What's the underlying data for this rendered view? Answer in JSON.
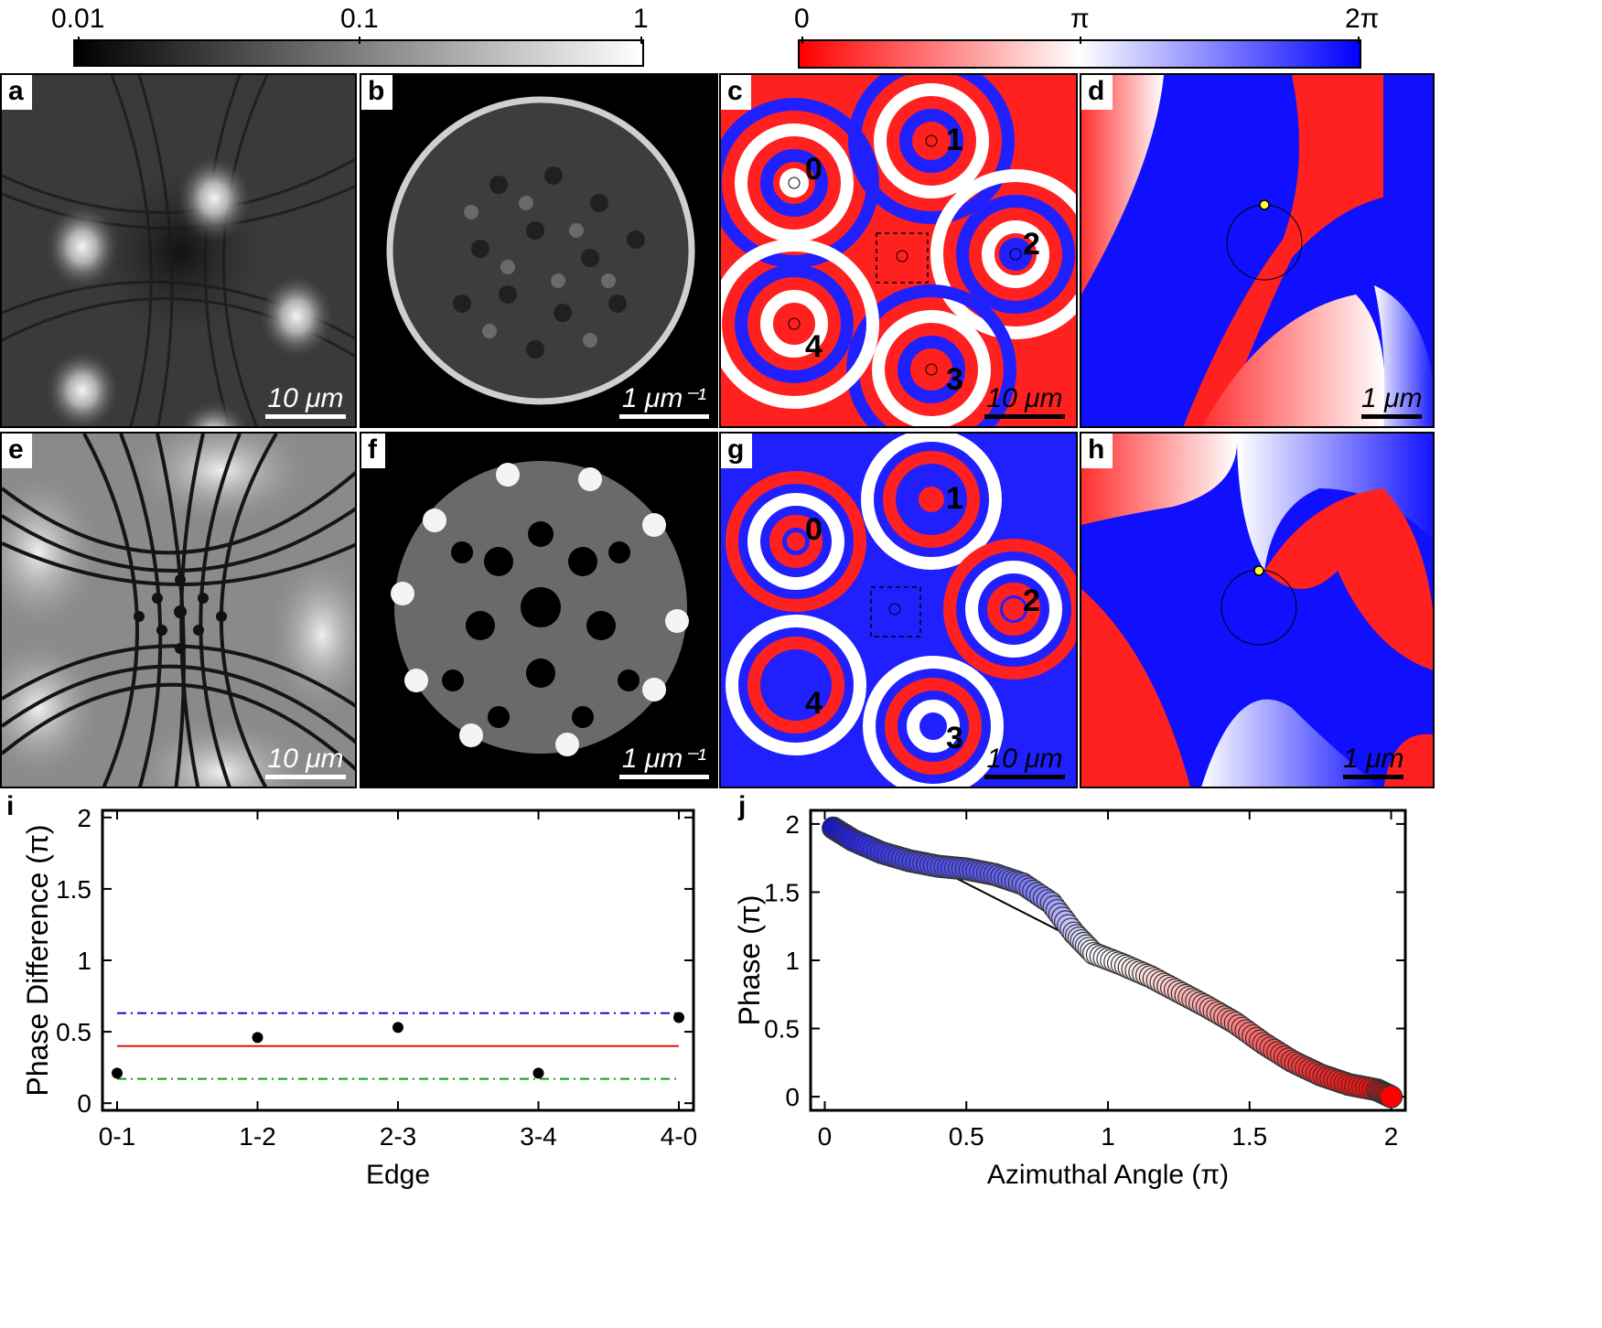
{
  "colorbars": {
    "intensity": {
      "ticks": [
        "0.01",
        "0.1",
        "1"
      ]
    },
    "phase": {
      "ticks": [
        "0",
        "π",
        "2π"
      ]
    }
  },
  "panels": {
    "a": {
      "label": "a",
      "scale": "10 μm"
    },
    "b": {
      "label": "b",
      "scale": "1 μm⁻¹"
    },
    "c": {
      "label": "c",
      "scale": "10 μm",
      "modes": [
        "0",
        "1",
        "2",
        "3",
        "4"
      ]
    },
    "d": {
      "label": "d",
      "scale": "1 μm"
    },
    "e": {
      "label": "e",
      "scale": "10 μm"
    },
    "f": {
      "label": "f",
      "scale": "1 μm⁻¹"
    },
    "g": {
      "label": "g",
      "scale": "10 μm",
      "modes": [
        "0",
        "1",
        "2",
        "3",
        "4"
      ]
    },
    "h": {
      "label": "h",
      "scale": "1 μm"
    }
  },
  "chart_data": [
    {
      "panel": "i",
      "type": "scatter",
      "title": "",
      "xlabel": "Edge",
      "ylabel": "Phase Difference (π)",
      "categories": [
        "0-1",
        "1-2",
        "2-3",
        "3-4",
        "4-0"
      ],
      "values": [
        0.21,
        0.46,
        0.53,
        0.21,
        0.6
      ],
      "ylim": [
        -0.05,
        2.05
      ],
      "yticks": [
        "0",
        "0.5",
        "1",
        "1.5",
        "2"
      ],
      "reference_lines": [
        {
          "name": "blue dash-dot",
          "value": 0.63,
          "color": "#1010d0",
          "style": "dashdot"
        },
        {
          "name": "red solid",
          "value": 0.4,
          "color": "#e01010",
          "style": "solid"
        },
        {
          "name": "green dash-dot",
          "value": 0.17,
          "color": "#10a010",
          "style": "dashdot"
        }
      ]
    },
    {
      "panel": "j",
      "type": "scatter",
      "title": "",
      "xlabel": "Azimuthal Angle (π)",
      "ylabel": "Phase (π)",
      "xlim": [
        -0.05,
        2.05
      ],
      "ylim": [
        -0.1,
        2.1
      ],
      "xticks": [
        "0",
        "0.5",
        "1",
        "1.5",
        "2"
      ],
      "yticks": [
        "0",
        "0.5",
        "1",
        "1.5",
        "2"
      ],
      "x": [
        0.03,
        0.1,
        0.2,
        0.3,
        0.4,
        0.5,
        0.6,
        0.7,
        0.8,
        0.88,
        0.95,
        1.05,
        1.15,
        1.25,
        1.35,
        1.45,
        1.55,
        1.65,
        1.75,
        1.85,
        1.95,
        2.0
      ],
      "y": [
        1.97,
        1.88,
        1.79,
        1.73,
        1.69,
        1.67,
        1.63,
        1.56,
        1.42,
        1.2,
        1.05,
        0.97,
        0.88,
        0.77,
        0.66,
        0.54,
        0.39,
        0.26,
        0.16,
        0.09,
        0.05,
        0.0
      ],
      "reference_line": {
        "x": [
          0.4,
          1.75
        ],
        "y": [
          1.67,
          0.24
        ]
      }
    }
  ],
  "colors": {
    "red": "#ff0000",
    "white": "#ffffff",
    "blue": "#0000ff"
  }
}
